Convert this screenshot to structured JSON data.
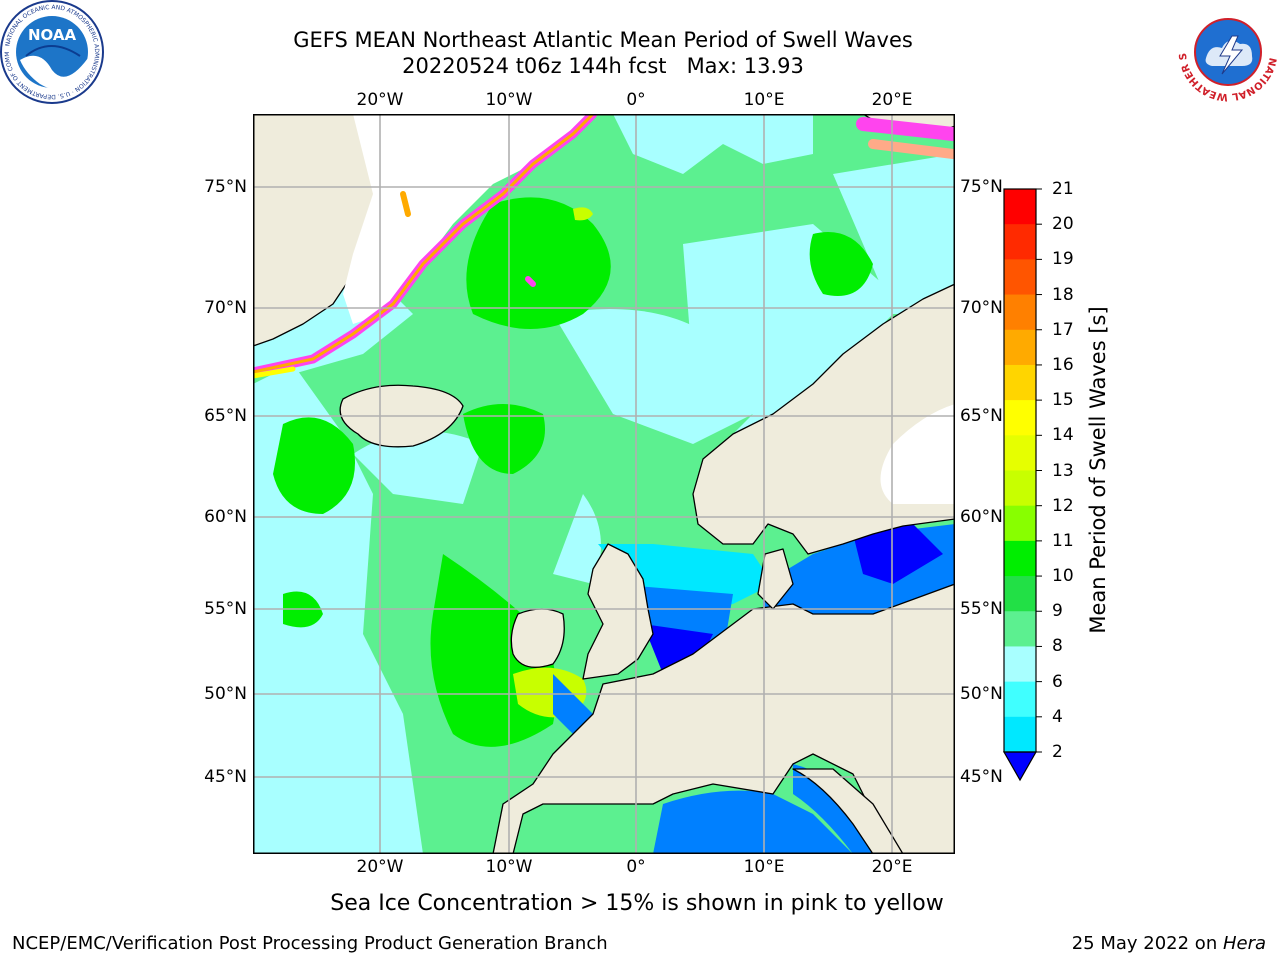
{
  "title": {
    "line1": "GEFS MEAN Northeast Atlantic Mean Period of Swell Waves",
    "line2": "20220524 t06z 144h fcst   Max: 13.93"
  },
  "map": {
    "lon_ticks": [
      "20°W",
      "10°W",
      "0°",
      "10°E",
      "20°E"
    ],
    "lat_ticks": [
      "75°N",
      "70°N",
      "65°N",
      "60°N",
      "55°N",
      "50°N",
      "45°N"
    ],
    "colors": {
      "land": "#efecdc",
      "ice_free_land_white": "#ffffff",
      "grid": "#b0b0b0",
      "coast": "#000000"
    }
  },
  "colorbar": {
    "label": "Mean Period of Swell Waves [s]",
    "ticks": [
      "21",
      "20",
      "19",
      "18",
      "17",
      "16",
      "15",
      "14",
      "13",
      "12",
      "11",
      "10",
      "9",
      "8",
      "6",
      "4",
      "2"
    ],
    "colors": [
      "#ff0000",
      "#ff2a00",
      "#ff5500",
      "#ff8000",
      "#ffaa00",
      "#ffd500",
      "#ffff00",
      "#e6ff00",
      "#c8ff00",
      "#88ff00",
      "#00ee00",
      "#22e046",
      "#5cf090",
      "#a8ffff",
      "#40ffff",
      "#00e8ff",
      "#0080ff",
      "#0000ff"
    ]
  },
  "note": "Sea Ice Concentration > 15% is shown in pink to yellow",
  "footer": {
    "left": "NCEP/EMC/Verification Post Processing Product Generation Branch",
    "date": "25 May 2022 on ",
    "machine": "Hera"
  },
  "logos": {
    "noaa": {
      "text": "NOAA",
      "ring": "NATIONAL OCEANIC AND ATMOSPHERIC ADMINISTRATION · U.S. DEPARTMENT OF COMMERCE"
    },
    "nws": {
      "ring": "NATIONAL WEATHER SERVICE"
    }
  }
}
